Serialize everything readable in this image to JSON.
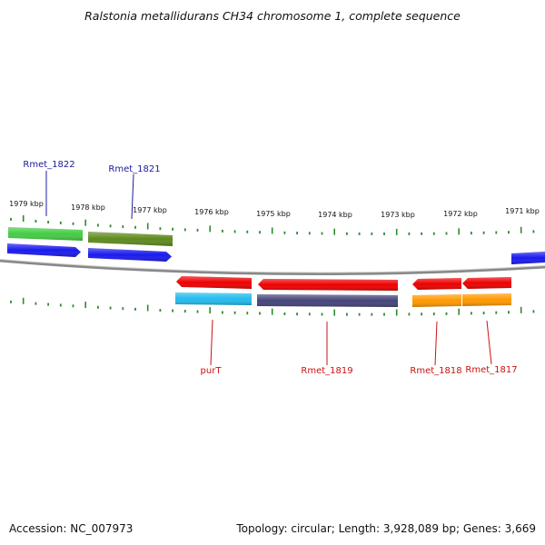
{
  "title": "Ralstonia metallidurans CH34 chromosome 1, complete sequence",
  "footer": {
    "accession": "Accession: NC_007973",
    "summary": "Topology: circular; Length: 3,928,089 bp; Genes: 3,669"
  },
  "colors": {
    "backbone": "#888888",
    "tick": "#2e8b2e",
    "top_label": "#1a1aa0",
    "bottom_label": "#cc1111",
    "red": "#ee0000",
    "blue": "#1a1aee",
    "green": "#44cc44",
    "olive": "#5f8a1e",
    "cyan": "#22bbee",
    "purple": "#44447a",
    "orange": "#ff9900"
  },
  "kbp_labels": [
    "1979 kbp",
    "1978 kbp",
    "1977 kbp",
    "1976 kbp",
    "1975 kbp",
    "1974 kbp",
    "1973 kbp",
    "1972 kbp",
    "1971 kbp"
  ],
  "top_genes": [
    {
      "name": "Rmet_1822"
    },
    {
      "name": "Rmet_1821"
    }
  ],
  "bottom_genes": [
    {
      "name": "purT"
    },
    {
      "name": "Rmet_1819"
    },
    {
      "name": "Rmet_1818"
    },
    {
      "name": "Rmet_1817"
    }
  ]
}
